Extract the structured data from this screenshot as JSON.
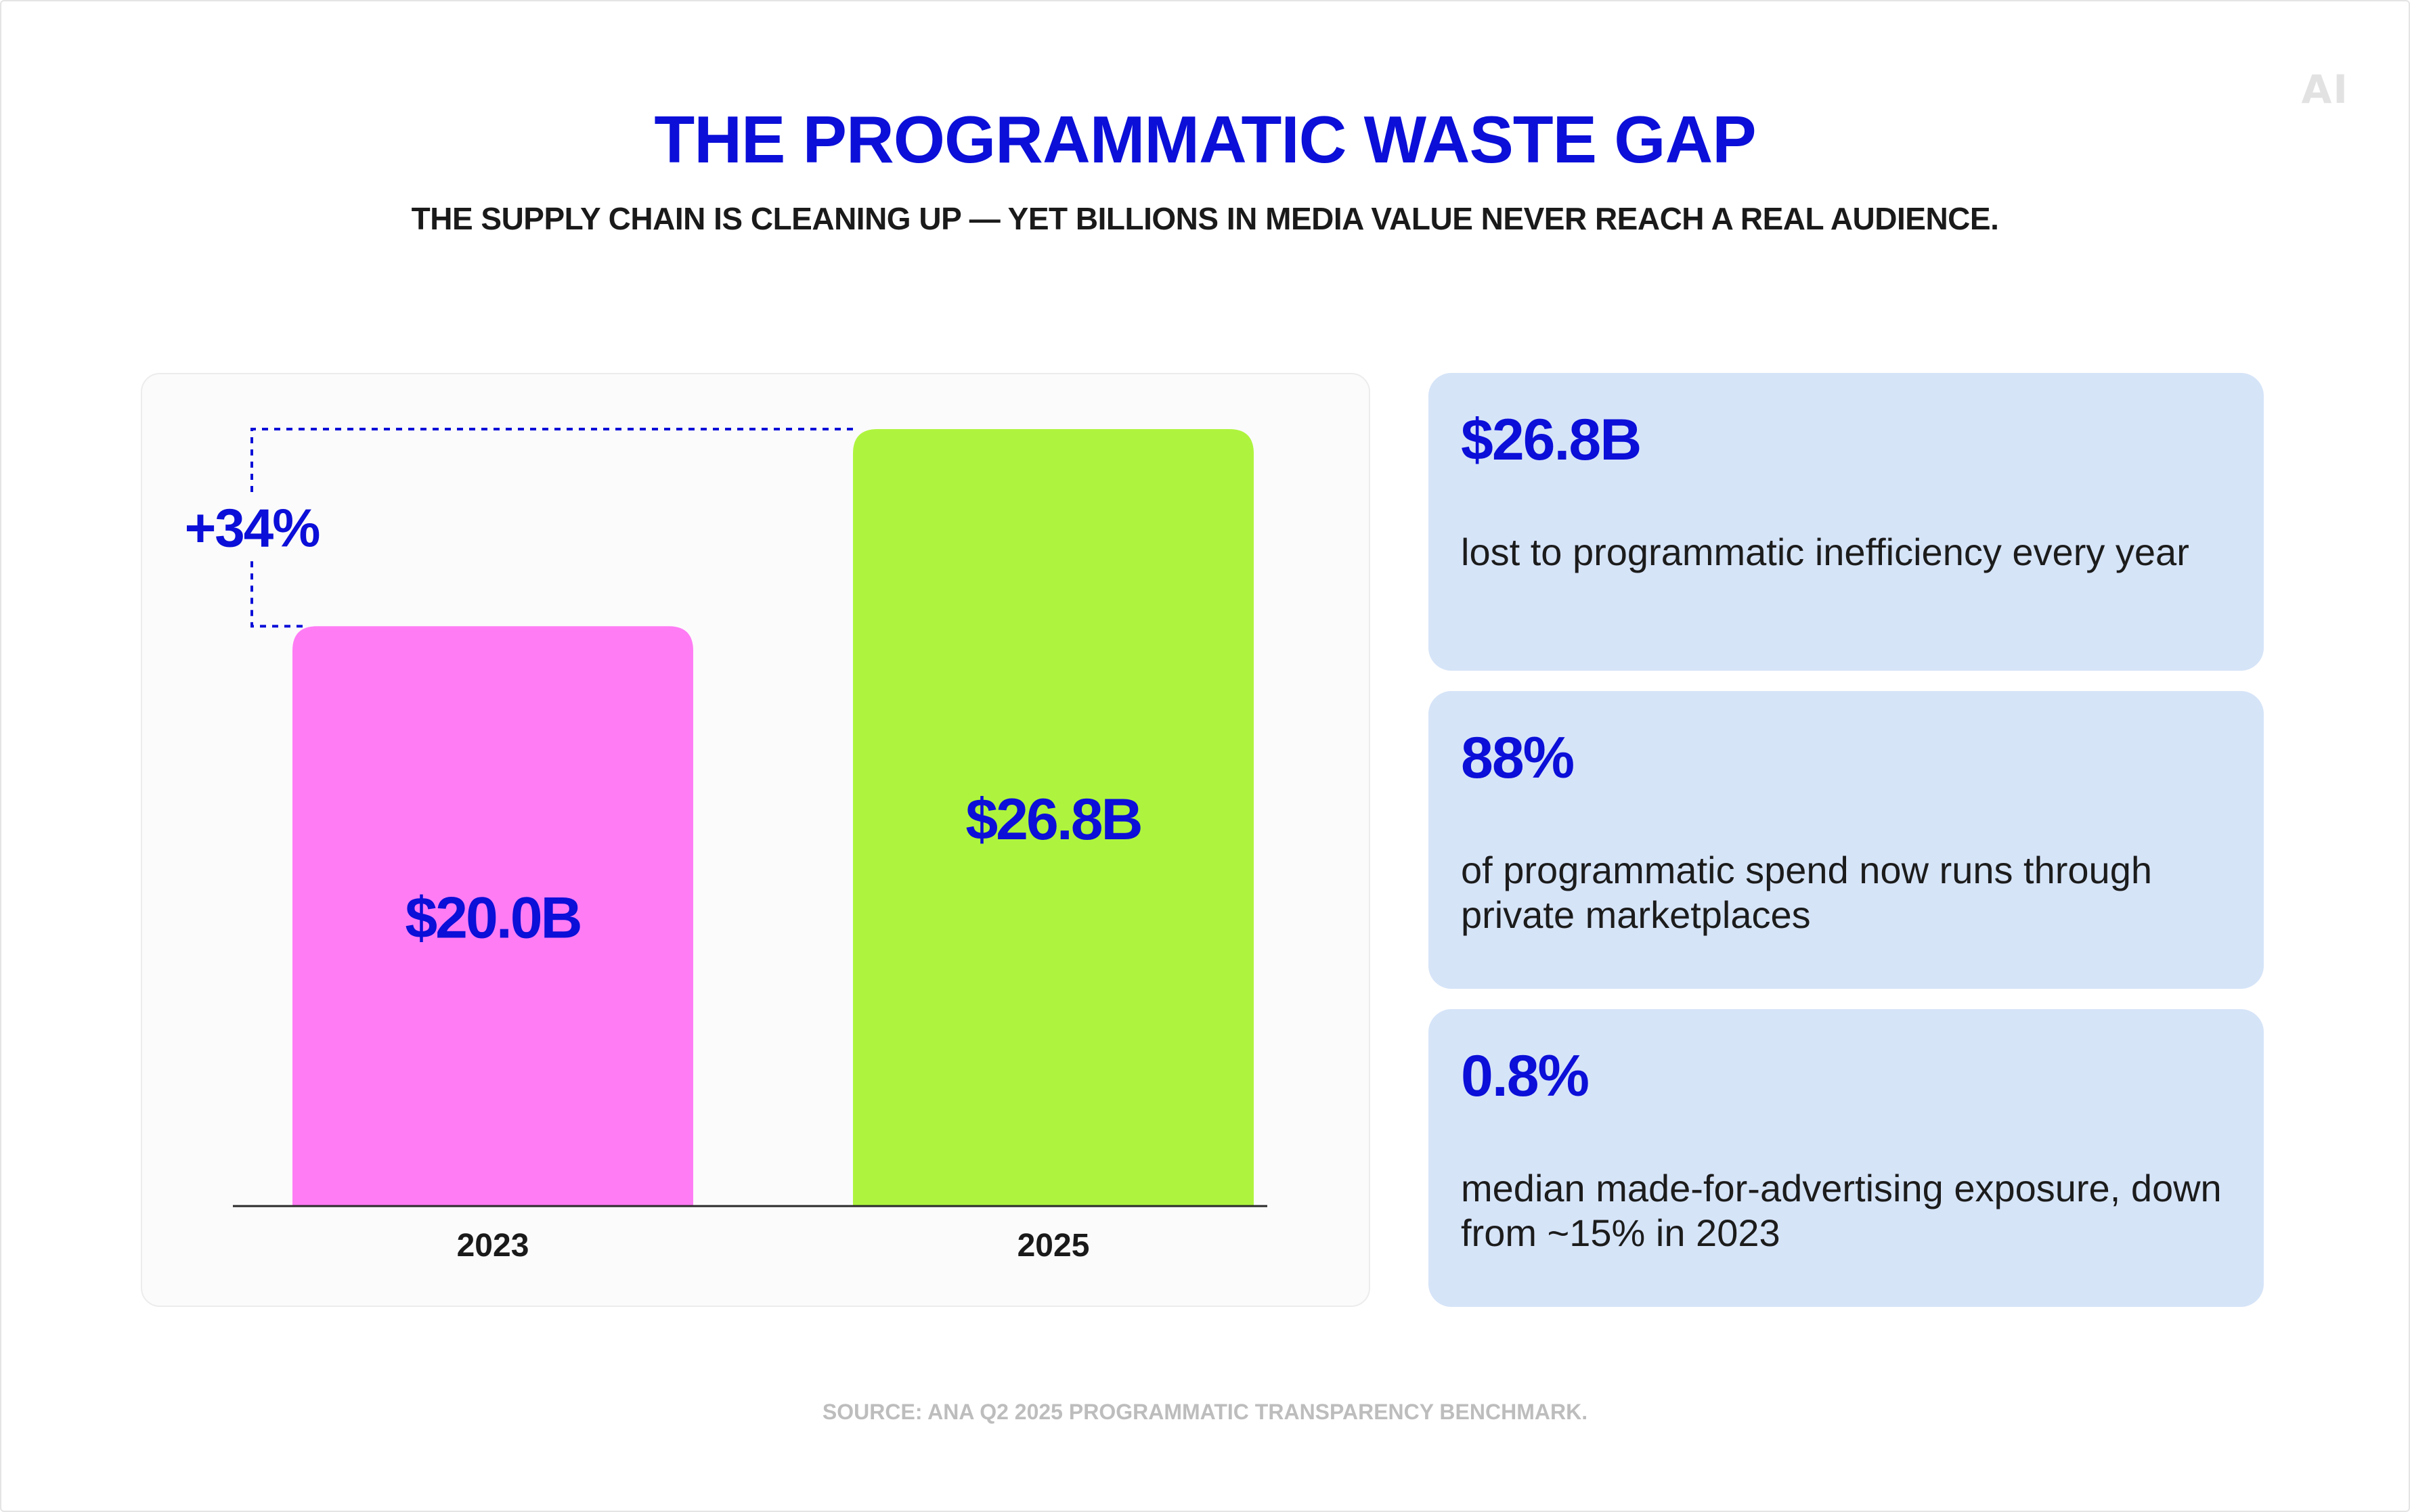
{
  "title": "THE PROGRAMMATIC WASTE GAP",
  "subtitle": "THE SUPPLY CHAIN IS CLEANING UP — YET BILLIONS IN MEDIA VALUE NEVER REACH A REAL AUDIENCE.",
  "logo": "AI",
  "source": "SOURCE: ANA Q2 2025 PROGRAMMATIC TRANSPARENCY BENCHMARK.",
  "chart_data": {
    "type": "bar",
    "categories": [
      "2023",
      "2025"
    ],
    "values": [
      20.0,
      26.8
    ],
    "data_labels": [
      "$20.0B",
      "$26.8B"
    ],
    "change_label": "+34%",
    "bar_colors": [
      "#ff7cf5",
      "#aef43e"
    ],
    "label_color": "#0b0fd8",
    "ylim": [
      0,
      26.8
    ],
    "grid": false
  },
  "stats": [
    {
      "value": "$26.8B",
      "desc": "lost to programmatic inefficiency every year"
    },
    {
      "value": "88%",
      "desc": "of programmatic spend now runs through private marketplaces"
    },
    {
      "value": "0.8%",
      "desc": "median made-for-advertising exposure, down from ~15% in 2023"
    }
  ],
  "colors": {
    "accent": "#0b0fd8",
    "card_bg": "#d6e4f8"
  }
}
